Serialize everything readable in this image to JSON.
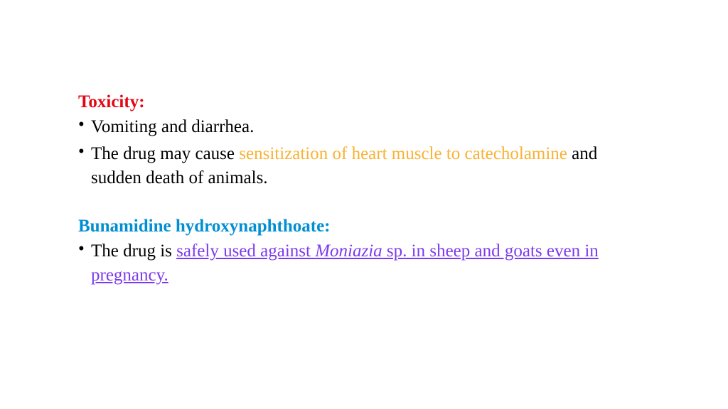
{
  "colors": {
    "heading_red": "#e30613",
    "heading_blue": "#008fd3",
    "body_black": "#000000",
    "highlight_orange": "#f9b233",
    "highlight_purple": "#7c3aed",
    "background": "#ffffff"
  },
  "typography": {
    "font_family": "Comic Sans MS",
    "heading_fontsize_pt": 19,
    "body_fontsize_pt": 19,
    "heading_weight": "bold"
  },
  "section1": {
    "heading": "Toxicity:",
    "bullets": [
      {
        "full": "Vomiting and diarrhea."
      },
      {
        "pre": "The drug may cause ",
        "highlight": "sensitization of heart muscle to catecholamine",
        "post": " and sudden death of animals."
      }
    ]
  },
  "section2": {
    "heading": "Bunamidine hydroxynaphthoate:",
    "bullets": [
      {
        "pre": "The drug is ",
        "u1": "safely used against ",
        "u_italic": "Moniazia",
        "u2": " sp. in sheep and goats even in pregnancy."
      }
    ]
  }
}
